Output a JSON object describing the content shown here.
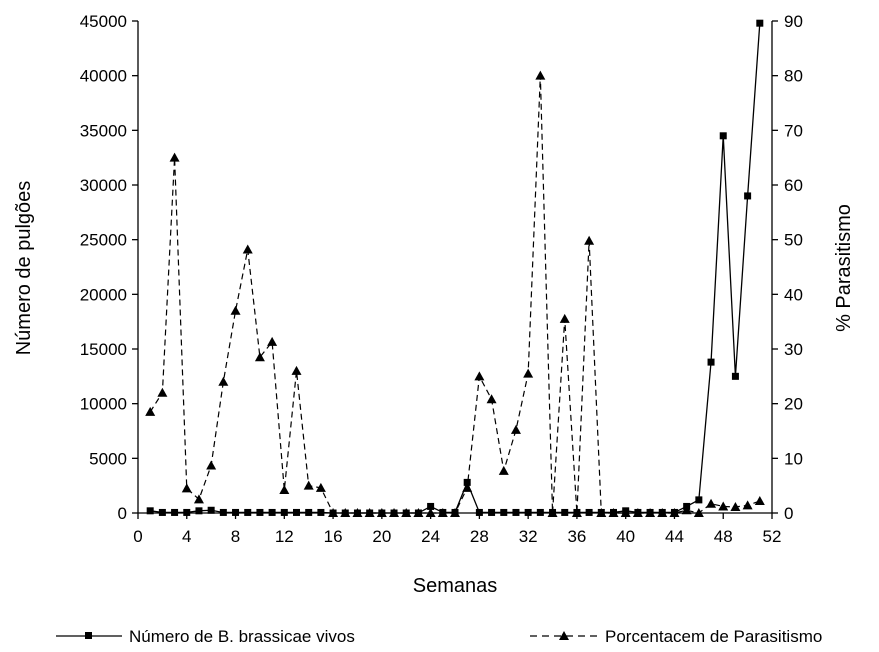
{
  "chart_data": {
    "type": "line",
    "title": "",
    "xlabel": "Semanas",
    "ylabel": "Número de pulgões",
    "y2label": "% Parasitismo",
    "xlim": [
      0,
      52
    ],
    "ylim": [
      0,
      45000
    ],
    "y2lim": [
      0,
      90
    ],
    "xticks": [
      "0",
      "4",
      "8",
      "12",
      "16",
      "20",
      "24",
      "28",
      "32",
      "36",
      "40",
      "44",
      "48",
      "52"
    ],
    "yticks": [
      "0",
      "5000",
      "10000",
      "15000",
      "20000",
      "25000",
      "30000",
      "35000",
      "40000",
      "45000"
    ],
    "y2ticks": [
      "0",
      "10",
      "20",
      "30",
      "40",
      "50",
      "60",
      "70",
      "80",
      "90"
    ],
    "grid": false,
    "legend": "bottom",
    "series": [
      {
        "name": "Número de B. brassicae vivos",
        "axis": "left",
        "style": "solid",
        "marker": "square",
        "x": [
          1,
          2,
          3,
          4,
          5,
          6,
          7,
          8,
          9,
          10,
          11,
          12,
          13,
          14,
          15,
          16,
          17,
          18,
          19,
          20,
          21,
          22,
          23,
          24,
          25,
          26,
          27,
          28,
          29,
          30,
          31,
          32,
          33,
          34,
          35,
          36,
          37,
          38,
          39,
          40,
          41,
          42,
          43,
          44,
          45,
          46,
          47,
          48,
          49,
          50,
          51
        ],
        "y": [
          200,
          50,
          50,
          50,
          200,
          250,
          50,
          50,
          50,
          50,
          50,
          50,
          50,
          50,
          50,
          0,
          0,
          0,
          0,
          0,
          0,
          0,
          0,
          600,
          50,
          50,
          2800,
          50,
          50,
          50,
          50,
          50,
          50,
          50,
          50,
          50,
          50,
          50,
          50,
          200,
          50,
          50,
          50,
          50,
          600,
          1200,
          13800,
          34500,
          12500,
          29000,
          44800
        ]
      },
      {
        "name": "Porcentacem de Parasitismo",
        "axis": "right",
        "style": "dashed",
        "marker": "triangle",
        "x": [
          1,
          2,
          3,
          4,
          5,
          6,
          7,
          8,
          9,
          10,
          11,
          12,
          13,
          14,
          15,
          16,
          17,
          18,
          19,
          20,
          21,
          22,
          23,
          24,
          25,
          26,
          27,
          28,
          29,
          30,
          31,
          32,
          33,
          34,
          35,
          36,
          37,
          38,
          39,
          40,
          41,
          42,
          43,
          44,
          45,
          46,
          47,
          48,
          49,
          50,
          51
        ],
        "y": [
          18.5,
          22,
          65,
          4.5,
          2.5,
          8.7,
          24,
          37,
          48.2,
          28.5,
          31.3,
          4.2,
          26,
          5,
          4.6,
          0,
          0,
          0,
          0,
          0,
          0,
          0,
          0,
          0,
          0,
          0,
          4.6,
          25,
          20.8,
          7.7,
          15.2,
          25.5,
          80,
          0,
          35.5,
          0,
          49.8,
          0,
          0,
          0,
          0,
          0,
          0,
          0,
          0.5,
          0,
          1.7,
          1.2,
          1.1,
          1.4,
          2.2
        ]
      }
    ]
  }
}
